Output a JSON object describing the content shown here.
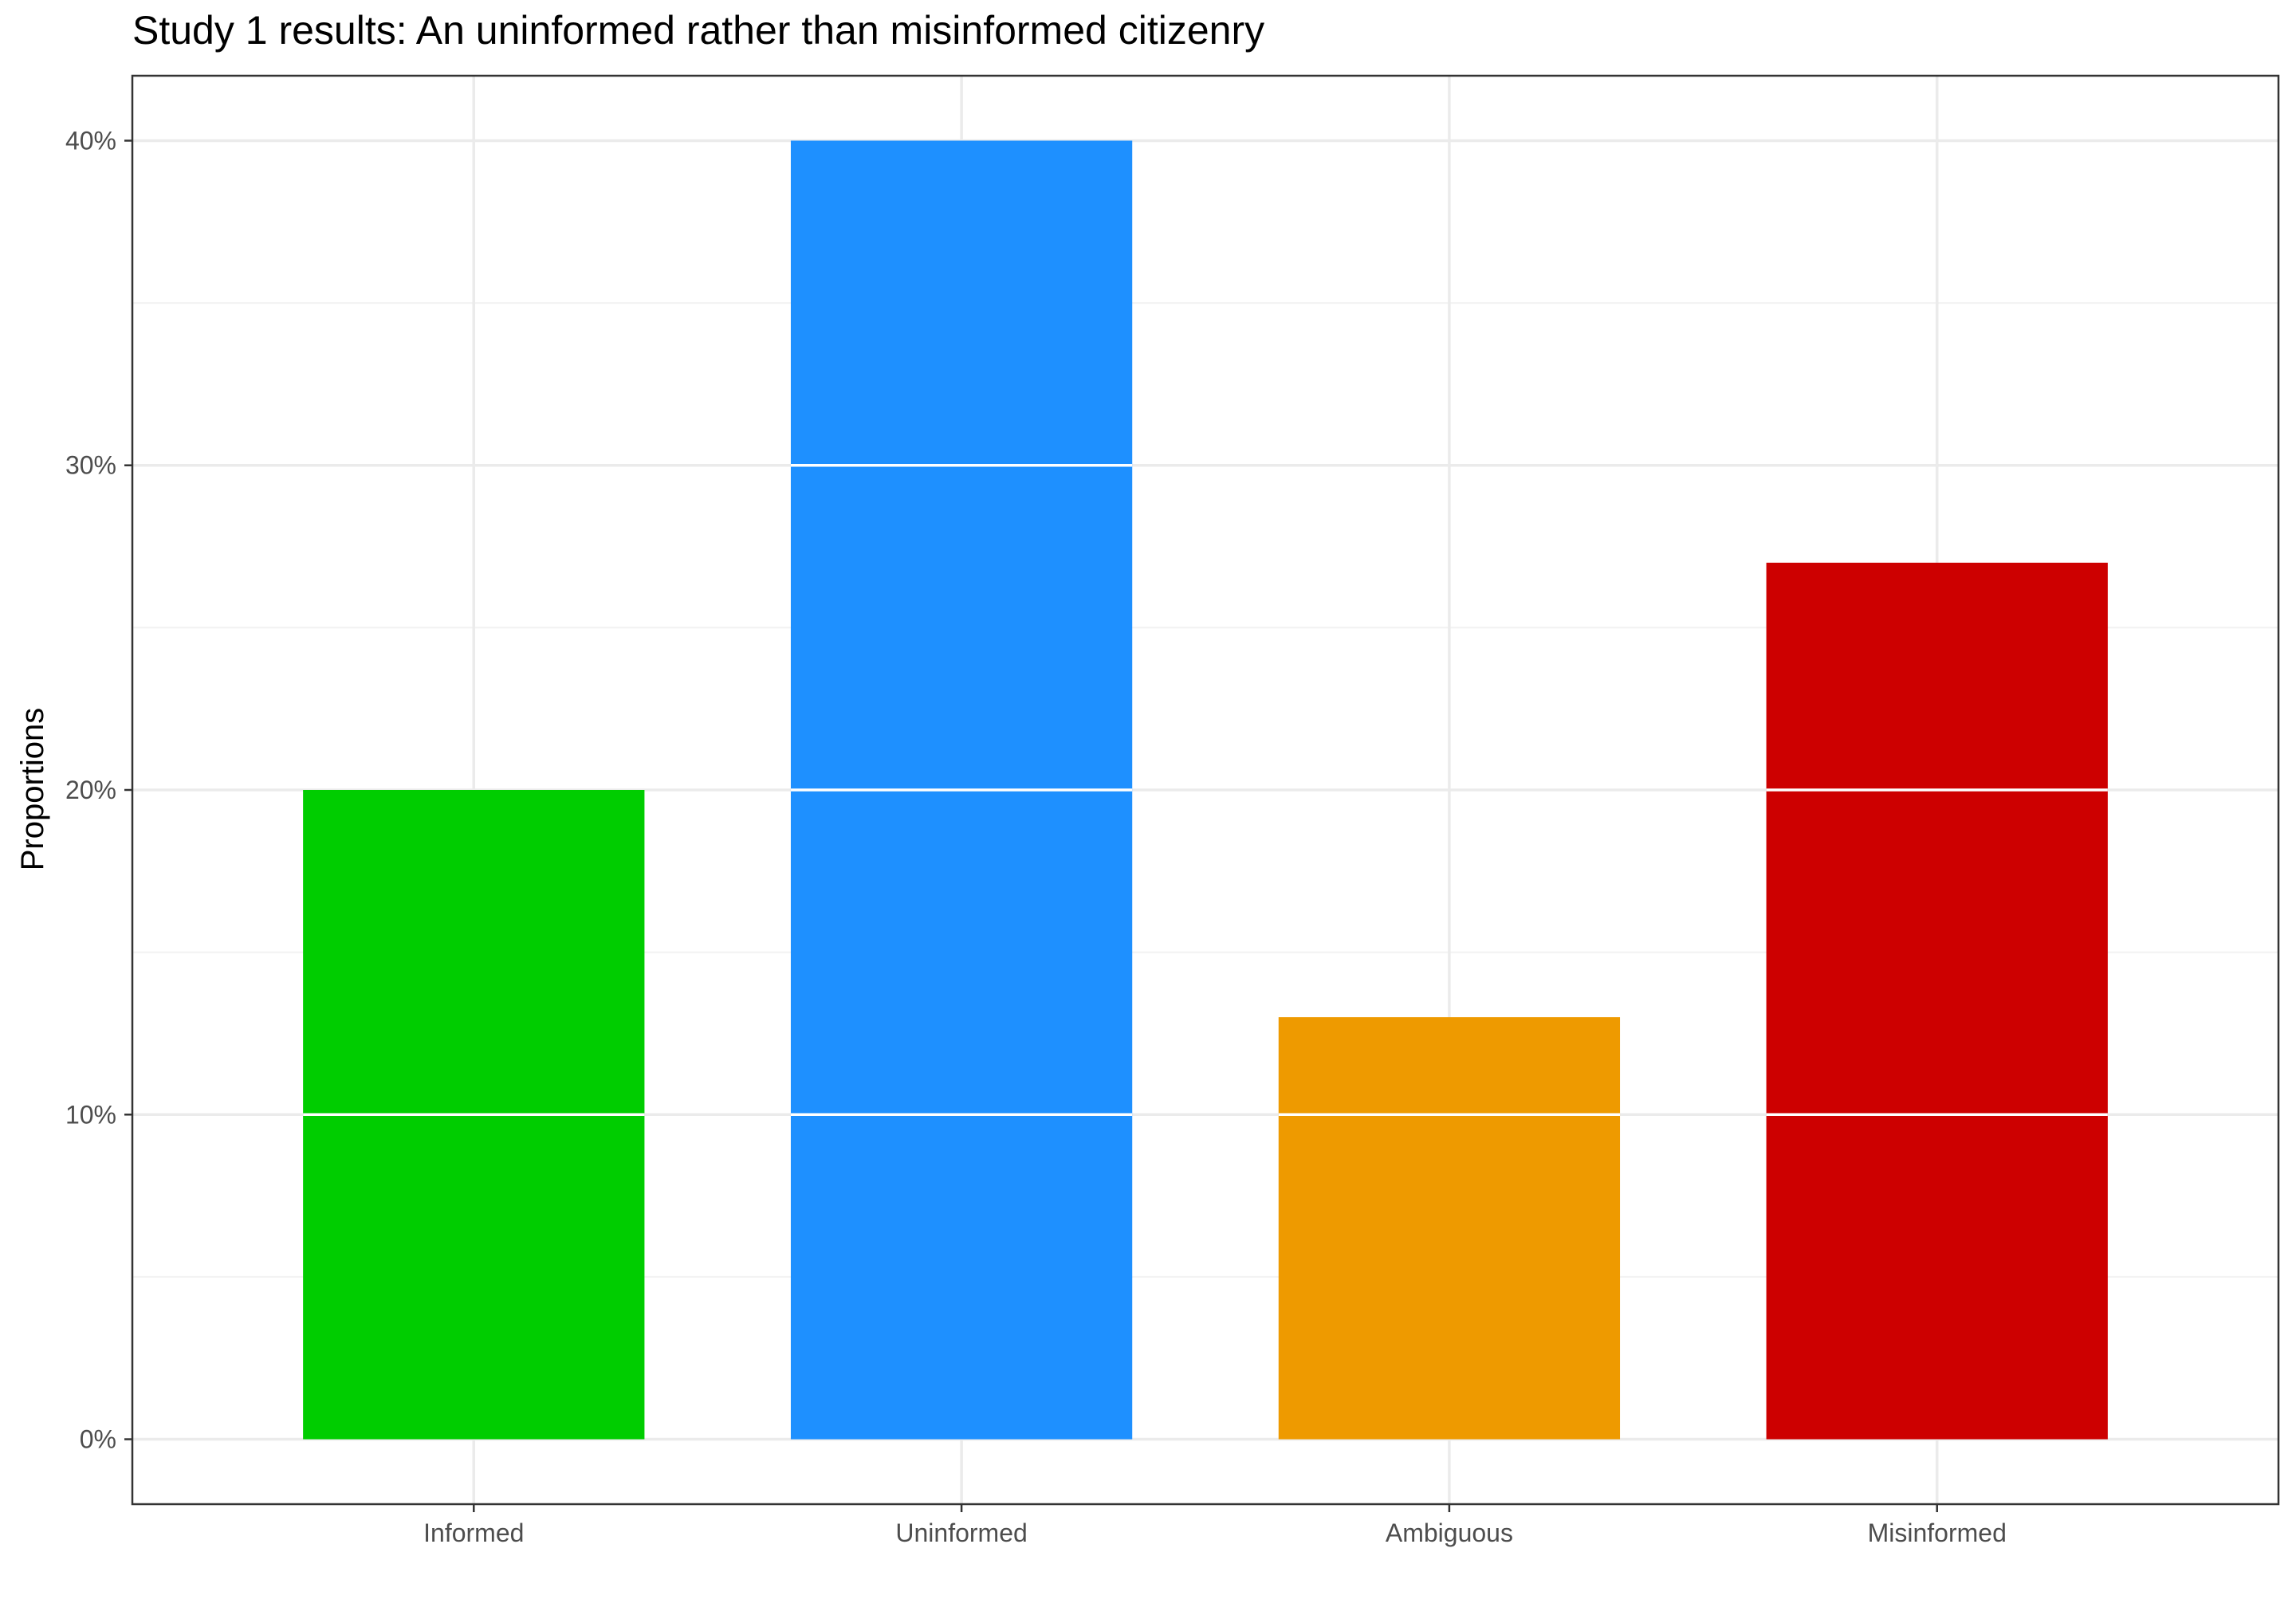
{
  "chart_data": {
    "type": "bar",
    "title": "Study 1 results: An uninformed rather than misinformed citizenry",
    "xlabel": "",
    "ylabel": "Proportions",
    "categories": [
      "Informed",
      "Uninformed",
      "Ambiguous",
      "Misinformed"
    ],
    "values": [
      0.2,
      0.4,
      0.13,
      0.27
    ],
    "colors": [
      "#00CD00",
      "#1E90FF",
      "#EE9A00",
      "#CD0000"
    ],
    "ylim": [
      -0.02,
      0.42
    ],
    "yticks": [
      0,
      0.1,
      0.2,
      0.3,
      0.4
    ],
    "ytick_labels": [
      "0%",
      "10%",
      "20%",
      "30%",
      "40%"
    ],
    "grid": true,
    "bar_segment_lines": "white lines at every 10%"
  }
}
